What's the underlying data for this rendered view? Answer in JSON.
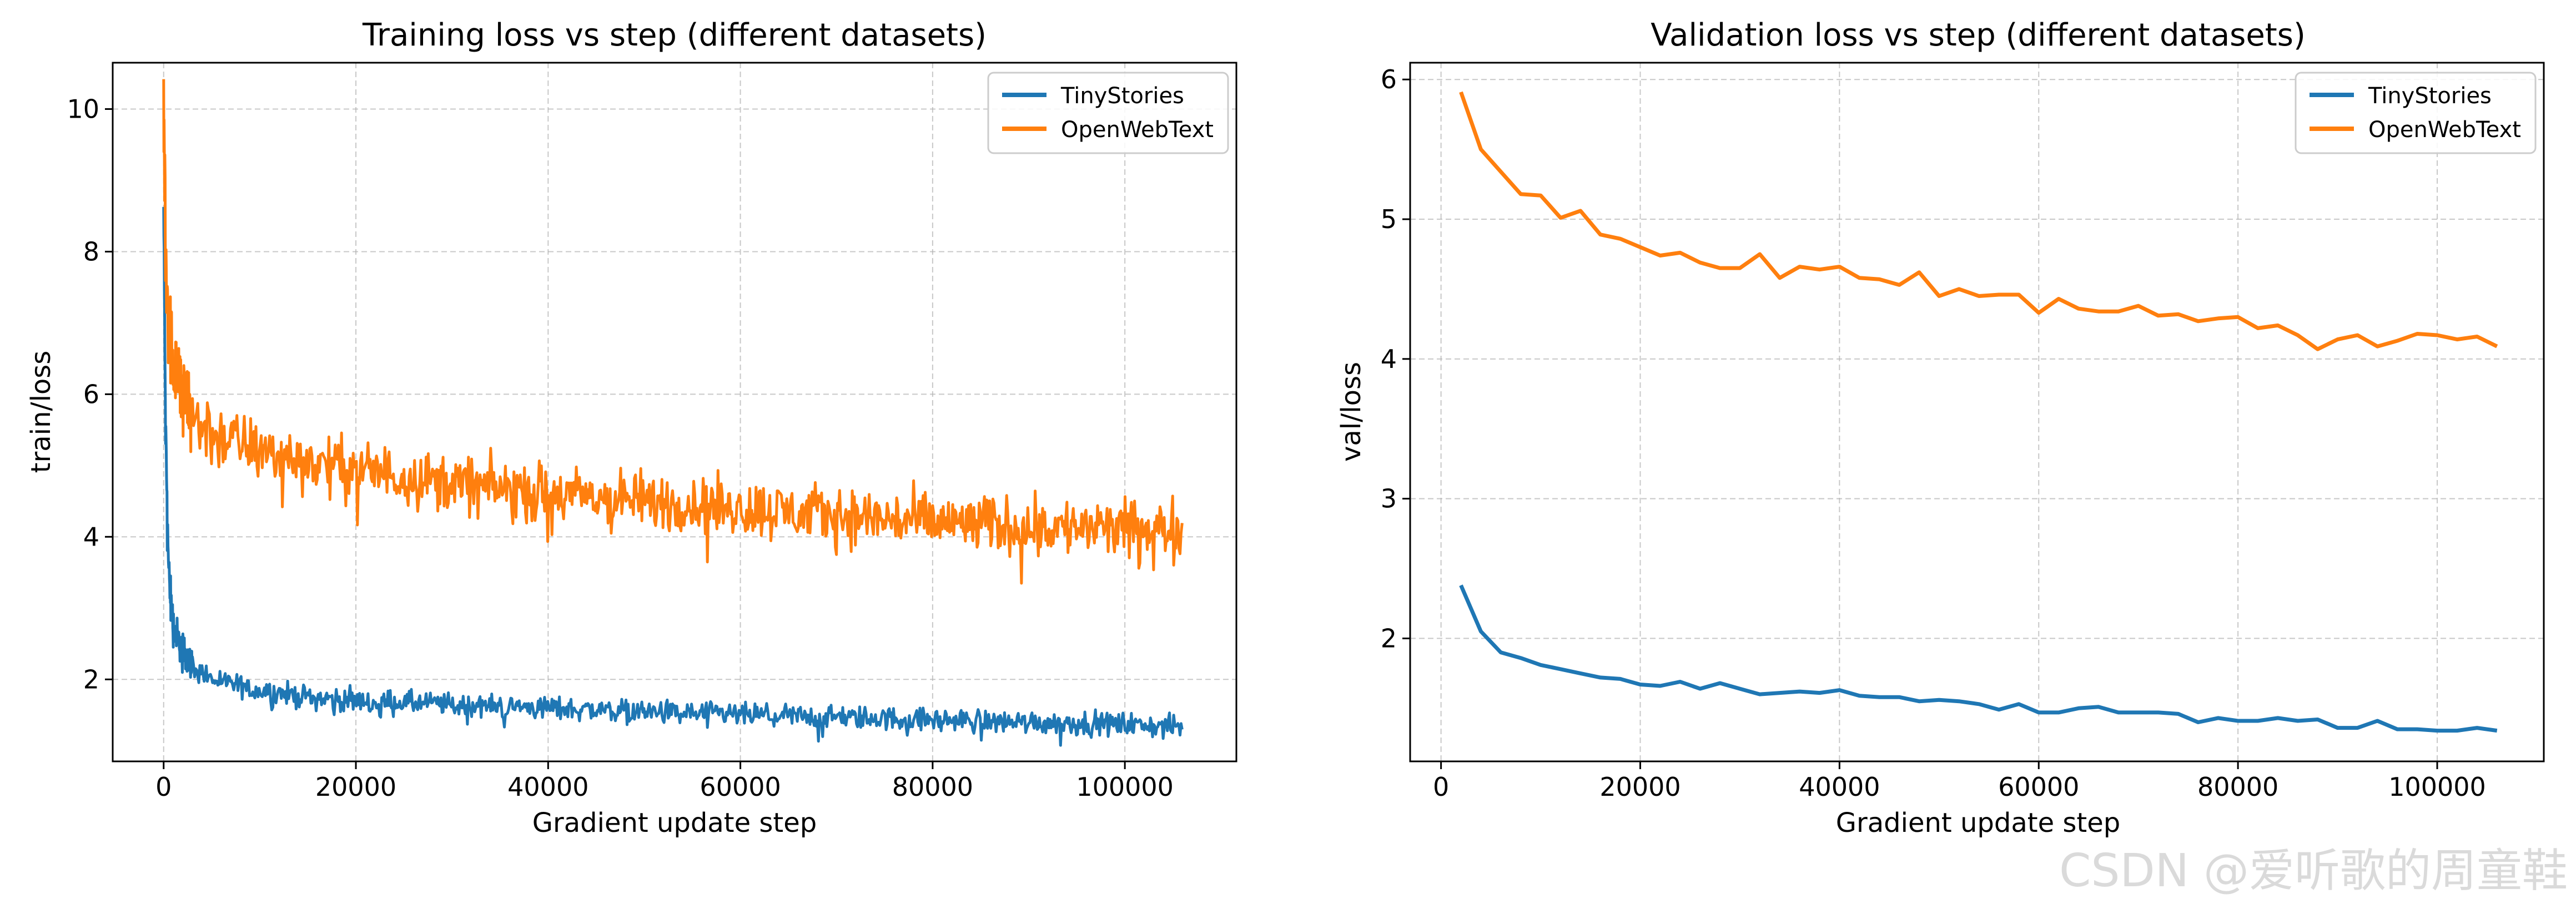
{
  "watermark": "CSDN @爱听歌的周童鞋",
  "colors": {
    "TinyStories": "#1f77b4",
    "OpenWebText": "#ff7f0e",
    "grid": "#b0b0b0"
  },
  "chart_data": [
    {
      "type": "line",
      "title": "Training loss vs step (different datasets)",
      "xlabel": "Gradient update step",
      "ylabel": "train/loss",
      "xlim": [
        -5300,
        111600
      ],
      "ylim": [
        0.85,
        10.65
      ],
      "xticks": [
        0,
        20000,
        40000,
        60000,
        80000,
        100000
      ],
      "yticks": [
        2,
        4,
        6,
        8,
        10
      ],
      "grid": true,
      "legend": "top-right",
      "noisy": true,
      "series": [
        {
          "name": "TinyStories",
          "x": [
            0,
            200,
            500,
            1000,
            2000,
            3000,
            5000,
            8000,
            10000,
            15000,
            20000,
            30000,
            40000,
            50000,
            60000,
            70000,
            80000,
            90000,
            100000,
            106000
          ],
          "values": [
            8.6,
            5.5,
            3.6,
            2.75,
            2.4,
            2.2,
            2.0,
            1.9,
            1.85,
            1.75,
            1.7,
            1.65,
            1.6,
            1.55,
            1.5,
            1.47,
            1.43,
            1.4,
            1.37,
            1.32
          ],
          "noise": [
            0.15,
            0.15,
            0.15,
            0.13,
            0.12,
            0.1,
            0.08,
            0.08,
            0.08,
            0.08,
            0.08,
            0.08,
            0.08,
            0.08,
            0.08,
            0.08,
            0.08,
            0.08,
            0.08,
            0.08
          ]
        },
        {
          "name": "OpenWebText",
          "x": [
            0,
            200,
            500,
            1000,
            2000,
            3000,
            5000,
            8000,
            10000,
            15000,
            20000,
            30000,
            40000,
            50000,
            60000,
            70000,
            80000,
            90000,
            100000,
            106000
          ],
          "values": [
            10.2,
            8.0,
            7.0,
            6.5,
            6.0,
            5.7,
            5.45,
            5.3,
            5.2,
            5.05,
            4.95,
            4.75,
            4.6,
            4.5,
            4.4,
            4.3,
            4.2,
            4.15,
            4.1,
            4.1
          ],
          "noise": [
            0.35,
            0.35,
            0.32,
            0.3,
            0.28,
            0.26,
            0.25,
            0.22,
            0.2,
            0.2,
            0.2,
            0.2,
            0.2,
            0.2,
            0.2,
            0.2,
            0.2,
            0.2,
            0.2,
            0.2
          ]
        }
      ]
    },
    {
      "type": "line",
      "title": "Validation loss vs step (different datasets)",
      "xlabel": "Gradient update step",
      "ylabel": "val/loss",
      "xlim": [
        -3100,
        110700
      ],
      "ylim": [
        1.12,
        6.12
      ],
      "xticks": [
        0,
        20000,
        40000,
        60000,
        80000,
        100000
      ],
      "yticks": [
        2,
        3,
        4,
        5,
        6
      ],
      "grid": true,
      "legend": "top-right",
      "noisy": false,
      "series": [
        {
          "name": "TinyStories",
          "x": [
            2000,
            4000,
            6000,
            8000,
            10000,
            12000,
            14000,
            16000,
            18000,
            20000,
            22000,
            24000,
            26000,
            28000,
            30000,
            32000,
            34000,
            36000,
            38000,
            40000,
            42000,
            44000,
            46000,
            48000,
            50000,
            52000,
            54000,
            56000,
            58000,
            60000,
            62000,
            64000,
            66000,
            68000,
            70000,
            72000,
            74000,
            76000,
            78000,
            80000,
            82000,
            84000,
            86000,
            88000,
            90000,
            92000,
            94000,
            96000,
            98000,
            100000,
            102000,
            104000,
            106000
          ],
          "values": [
            2.38,
            2.05,
            1.9,
            1.86,
            1.81,
            1.78,
            1.75,
            1.72,
            1.71,
            1.67,
            1.66,
            1.69,
            1.64,
            1.68,
            1.64,
            1.6,
            1.61,
            1.62,
            1.61,
            1.63,
            1.59,
            1.58,
            1.58,
            1.55,
            1.56,
            1.55,
            1.53,
            1.49,
            1.53,
            1.47,
            1.47,
            1.5,
            1.51,
            1.47,
            1.47,
            1.47,
            1.46,
            1.4,
            1.43,
            1.41,
            1.41,
            1.43,
            1.41,
            1.42,
            1.36,
            1.36,
            1.41,
            1.35,
            1.35,
            1.34,
            1.34,
            1.36,
            1.34
          ]
        },
        {
          "name": "OpenWebText",
          "x": [
            2000,
            4000,
            6000,
            8000,
            10000,
            12000,
            14000,
            16000,
            18000,
            20000,
            22000,
            24000,
            26000,
            28000,
            30000,
            32000,
            34000,
            36000,
            38000,
            40000,
            42000,
            44000,
            46000,
            48000,
            50000,
            52000,
            54000,
            56000,
            58000,
            60000,
            62000,
            64000,
            66000,
            68000,
            70000,
            72000,
            74000,
            76000,
            78000,
            80000,
            82000,
            84000,
            86000,
            88000,
            90000,
            92000,
            94000,
            96000,
            98000,
            100000,
            102000,
            104000,
            106000
          ],
          "values": [
            5.91,
            5.5,
            5.34,
            5.18,
            5.17,
            5.01,
            5.06,
            4.89,
            4.86,
            4.8,
            4.74,
            4.76,
            4.69,
            4.65,
            4.65,
            4.75,
            4.58,
            4.66,
            4.64,
            4.66,
            4.58,
            4.57,
            4.53,
            4.62,
            4.45,
            4.5,
            4.45,
            4.46,
            4.46,
            4.33,
            4.43,
            4.36,
            4.34,
            4.34,
            4.38,
            4.31,
            4.32,
            4.27,
            4.29,
            4.3,
            4.22,
            4.24,
            4.17,
            4.07,
            4.14,
            4.17,
            4.09,
            4.13,
            4.18,
            4.17,
            4.14,
            4.16,
            4.09
          ]
        }
      ]
    }
  ]
}
